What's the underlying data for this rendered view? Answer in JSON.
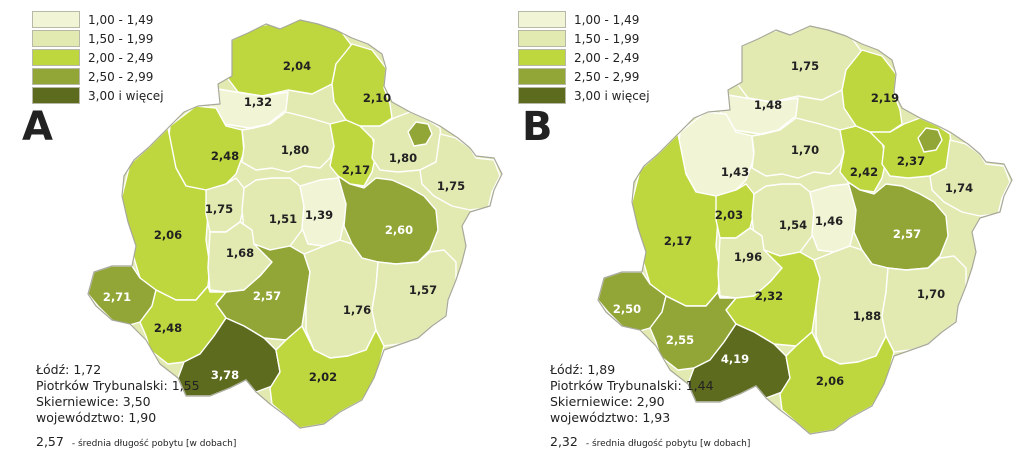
{
  "legend": {
    "items": [
      {
        "label": "1,00 - 1,49",
        "color": "#f2f4d6"
      },
      {
        "label": "1,50 - 1,99",
        "color": "#e2eab2"
      },
      {
        "label": "2,00 - 2,49",
        "color": "#bfd73e"
      },
      {
        "label": "2,50 - 2,99",
        "color": "#91a636"
      },
      {
        "label": "3,00 i więcej",
        "color": "#5c6b1e"
      }
    ]
  },
  "panels": [
    {
      "letter": "A",
      "stats": [
        "Łódź: 1,72",
        "Piotrków Trybunalski: 1,55",
        "Skierniewice: 3,50",
        "województwo: 1,90"
      ],
      "footnote_value": "2,57",
      "footnote_text": "- średnia długość pobytu [w dobach]",
      "regions": [
        {
          "label": "2,04",
          "class": 2
        },
        {
          "label": "1,32",
          "class": 0
        },
        {
          "label": "2,10",
          "class": 2
        },
        {
          "label": "2,48",
          "class": 2
        },
        {
          "label": "1,80",
          "class": 1
        },
        {
          "label": "2,17",
          "class": 2
        },
        {
          "label": "1,80",
          "class": 1
        },
        {
          "label": "",
          "class": 3
        },
        {
          "label": "1,75",
          "class": 1
        },
        {
          "label": "2,06",
          "class": 2
        },
        {
          "label": "1,75",
          "class": 1
        },
        {
          "label": "1,51",
          "class": 1
        },
        {
          "label": "1,39",
          "class": 0
        },
        {
          "label": "2,60",
          "class": 3
        },
        {
          "label": "1,68",
          "class": 1
        },
        {
          "label": "2,71",
          "class": 3
        },
        {
          "label": "2,57",
          "class": 3
        },
        {
          "label": "2,48",
          "class": 2
        },
        {
          "label": "1,76",
          "class": 1
        },
        {
          "label": "1,57",
          "class": 1
        },
        {
          "label": "3,78",
          "class": 4
        },
        {
          "label": "2,02",
          "class": 2
        }
      ]
    },
    {
      "letter": "B",
      "stats": [
        "Łódź: 1,89",
        "Piotrków Trybunalski: 1,44",
        "Skierniewice: 2,90",
        "województwo: 1,93"
      ],
      "footnote_value": "2,32",
      "footnote_text": "- średnia długość pobytu [w dobach]",
      "regions": [
        {
          "label": "1,75",
          "class": 1
        },
        {
          "label": "1,48",
          "class": 0
        },
        {
          "label": "2,19",
          "class": 2
        },
        {
          "label": "1,43",
          "class": 0
        },
        {
          "label": "1,70",
          "class": 1
        },
        {
          "label": "2,42",
          "class": 2
        },
        {
          "label": "2,37",
          "class": 2
        },
        {
          "label": "",
          "class": 3
        },
        {
          "label": "1,74",
          "class": 1
        },
        {
          "label": "2,17",
          "class": 2
        },
        {
          "label": "2,03",
          "class": 2
        },
        {
          "label": "1,54",
          "class": 1
        },
        {
          "label": "1,46",
          "class": 0
        },
        {
          "label": "2,57",
          "class": 3
        },
        {
          "label": "1,96",
          "class": 1
        },
        {
          "label": "2,50",
          "class": 3
        },
        {
          "label": "2,32",
          "class": 2
        },
        {
          "label": "2,55",
          "class": 3
        },
        {
          "label": "1,88",
          "class": 1
        },
        {
          "label": "1,70",
          "class": 1
        },
        {
          "label": "4,19",
          "class": 4
        },
        {
          "label": "2,06",
          "class": 2
        }
      ]
    }
  ]
}
